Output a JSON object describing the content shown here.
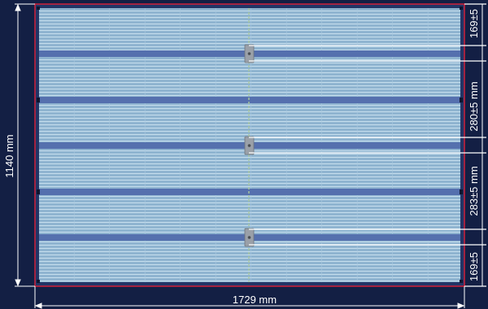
{
  "dimensions": {
    "width_label": "1729 mm",
    "height_label": "1140 mm",
    "segments": [
      "169±5",
      "280±5 mm",
      "283±5 mm",
      "169±5"
    ]
  },
  "colors": {
    "background": "#131f44",
    "panel_frame": "#d0203a",
    "cell_fill": "#8fb4d0",
    "cell_grid": "#c2dcec",
    "busbar": "#5570ae",
    "junction_box": "#9aa0a8",
    "dimension_line": "#ffffff"
  }
}
